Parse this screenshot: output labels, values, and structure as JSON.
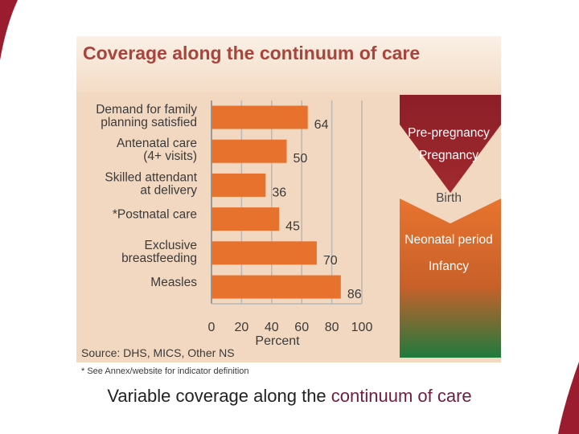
{
  "colors": {
    "accent": "#9b1c2e",
    "bar": "#e6722e",
    "panel": "#f2d8c0",
    "title": "#a8443c",
    "stage_top": "#a02a2e",
    "stage_mid": "#e8742e",
    "stage_bottom": "#1e7a3e"
  },
  "caption": {
    "prefix": "Variable coverage along the ",
    "highlight": "continuum of care"
  },
  "chart_data": {
    "type": "bar",
    "orientation": "horizontal",
    "title": "Coverage along the continuum of care",
    "categories": [
      [
        "Demand for family",
        "planning satisfied"
      ],
      [
        "Antenatal care",
        "(4+ visits)"
      ],
      [
        "Skilled attendant",
        "at delivery"
      ],
      [
        "*Postnatal care"
      ],
      [
        "Exclusive",
        "breastfeeding"
      ],
      [
        "Measles"
      ]
    ],
    "values": [
      64,
      50,
      36,
      45,
      70,
      86
    ],
    "xlim": [
      0,
      100
    ],
    "xticks": [
      0,
      20,
      40,
      60,
      80,
      100
    ],
    "xlabel": "Percent",
    "grid": true,
    "source": "Source: DHS, MICS, Other NS",
    "footnote": "* See Annex/website for indicator definition",
    "stages": [
      "Pre-pregnancy",
      "Pregnancy",
      "Birth",
      "Neonatal period",
      "Infancy"
    ]
  }
}
